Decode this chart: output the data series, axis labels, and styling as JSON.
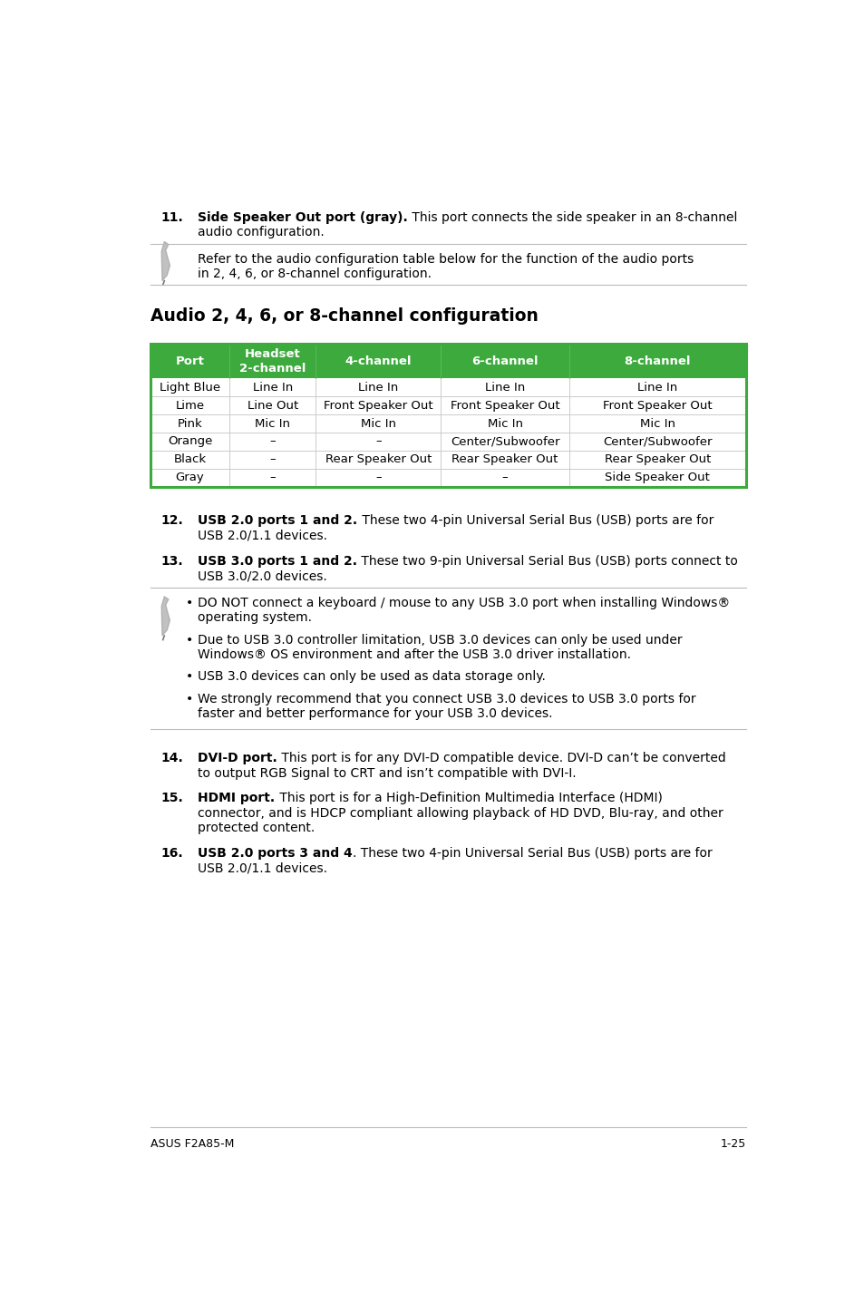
{
  "bg_color": "#ffffff",
  "green_color": "#3daa3d",
  "text_color": "#000000",
  "gray_line": "#bbbbbb",
  "item11_bold": "Side Speaker Out port (gray).",
  "item11_rest": " This port connects the side speaker in an 8-channel audio configuration.",
  "note1_text": "Refer to the audio configuration table below for the function of the audio ports in 2, 4, 6, or 8-channel configuration.",
  "section_title": "Audio 2, 4, 6, or 8-channel configuration",
  "table_headers": [
    "Port",
    "Headset\n2-channel",
    "4-channel",
    "6-channel",
    "8-channel"
  ],
  "table_rows": [
    [
      "Light Blue",
      "Line In",
      "Line In",
      "Line In",
      "Line In"
    ],
    [
      "Lime",
      "Line Out",
      "Front Speaker Out",
      "Front Speaker Out",
      "Front Speaker Out"
    ],
    [
      "Pink",
      "Mic In",
      "Mic In",
      "Mic In",
      "Mic In"
    ],
    [
      "Orange",
      "–",
      "–",
      "Center/Subwoofer",
      "Center/Subwoofer"
    ],
    [
      "Black",
      "–",
      "Rear Speaker Out",
      "Rear Speaker Out",
      "Rear Speaker Out"
    ],
    [
      "Gray",
      "–",
      "–",
      "–",
      "Side Speaker Out"
    ]
  ],
  "item12_bold": "USB 2.0 ports 1 and 2.",
  "item12_rest": " These two 4-pin Universal Serial Bus (USB) ports are for USB 2.0/1.1 devices.",
  "item13_bold": "USB 3.0 ports 1 and 2.",
  "item13_rest": " These two 9-pin Universal Serial Bus (USB) ports connect to USB 3.0/2.0 devices.",
  "note2_bullets": [
    "DO NOT connect a keyboard / mouse to any USB 3.0 port when installing Windows® operating system.",
    "Due to USB 3.0 controller limitation, USB 3.0 devices can only be used under Windows® OS environment and after the USB 3.0 driver installation.",
    "USB 3.0 devices can only be used as data storage only.",
    "We strongly recommend that you connect USB 3.0 devices to USB 3.0 ports for faster and better performance for your USB 3.0 devices."
  ],
  "item14_bold": "DVI-D port.",
  "item14_rest": " This port is for any DVI-D compatible device. DVI-D can’t be converted to output RGB Signal to CRT and isn’t compatible with DVI-I.",
  "item15_bold": "HDMI port.",
  "item15_rest": " This port is for a High-Definition Multimedia Interface (HDMI) connector, and is HDCP compliant allowing playback of HD DVD, Blu-ray, and other protected content.",
  "item16_bold": "USB 2.0 ports 3 and 4",
  "item16_rest": ". These two 4-pin Universal Serial Bus (USB) ports are for USB 2.0/1.1 devices.",
  "footer_left": "ASUS F2A85-M",
  "footer_right": "1-25"
}
